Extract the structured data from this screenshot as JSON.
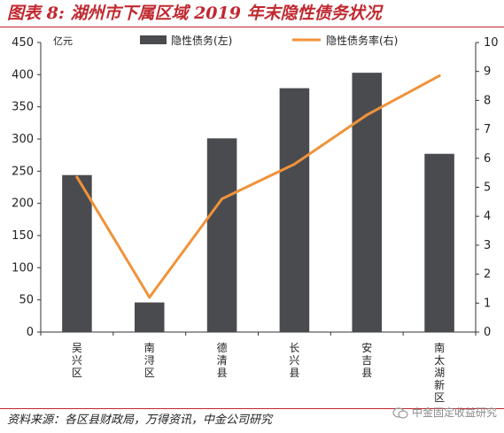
{
  "figure": {
    "title": "图表 8: 湖州市下属区域 2019 年末隐性债务状况",
    "source": "资料来源：各区县财政局，万得资讯，中金公司研究",
    "watermark": "中金固定收益研究"
  },
  "colors": {
    "accent": "#c0282f",
    "bar": "#4a4b4f",
    "line": "#f0923a",
    "axis": "#333333"
  },
  "chart_data": {
    "type": "bar",
    "categories": [
      "吴兴区",
      "南浔区",
      "德清县",
      "长兴县",
      "安吉县",
      "南太湖新区"
    ],
    "series": [
      {
        "name": "隐性债务(左)",
        "type": "bar",
        "axis": "left",
        "values": [
          244,
          46,
          301,
          379,
          403,
          277
        ]
      },
      {
        "name": "隐性债务率(右)",
        "type": "line",
        "axis": "right",
        "values": [
          5.35,
          1.2,
          4.6,
          5.8,
          7.5,
          8.85
        ]
      }
    ],
    "y_unit": "亿元",
    "ylim": [
      0,
      450
    ],
    "yticks": [
      0,
      50,
      100,
      150,
      200,
      250,
      300,
      350,
      400,
      450
    ],
    "y2lim": [
      0,
      10
    ],
    "y2ticks": [
      0,
      1,
      2,
      3,
      4,
      5,
      6,
      7,
      8,
      9,
      10
    ],
    "legend_position": "top"
  }
}
